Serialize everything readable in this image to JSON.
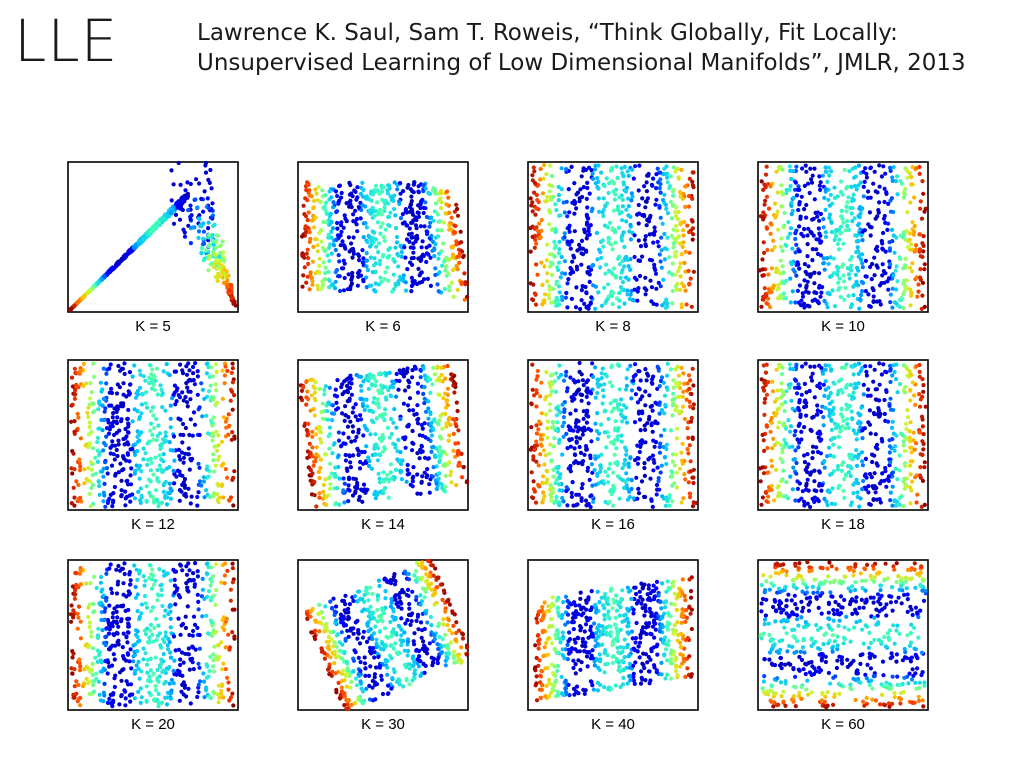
{
  "slide": {
    "title": "LLE",
    "citation_line1": "Lawrence K. Saul, Sam T. Roweis, “Think Globally, Fit Locally:",
    "citation_line2": "Unsupervised Learning of Low Dimensional Manifolds”, JMLR, 2013"
  },
  "figure": {
    "colormap": [
      "#00008f",
      "#0000ff",
      "#00bfff",
      "#40ffbf",
      "#bfff40",
      "#ffbf00",
      "#ff4000",
      "#8f0000"
    ],
    "panels": [
      {
        "label": "K = 5",
        "pattern": "collapsed-tent"
      },
      {
        "label": "K = 6",
        "pattern": "distorted-stripes"
      },
      {
        "label": "K = 8",
        "pattern": "vertical-stripes"
      },
      {
        "label": "K = 10",
        "pattern": "vertical-stripes"
      },
      {
        "label": "K = 12",
        "pattern": "vertical-stripes"
      },
      {
        "label": "K = 14",
        "pattern": "tilted-stripes"
      },
      {
        "label": "K = 16",
        "pattern": "vertical-stripes"
      },
      {
        "label": "K = 18",
        "pattern": "vertical-stripes"
      },
      {
        "label": "K = 20",
        "pattern": "vertical-stripes"
      },
      {
        "label": "K = 30",
        "pattern": "folded-edge"
      },
      {
        "label": "K = 40",
        "pattern": "folded-edge"
      },
      {
        "label": "K = 60",
        "pattern": "horizontal-mixed"
      }
    ]
  }
}
